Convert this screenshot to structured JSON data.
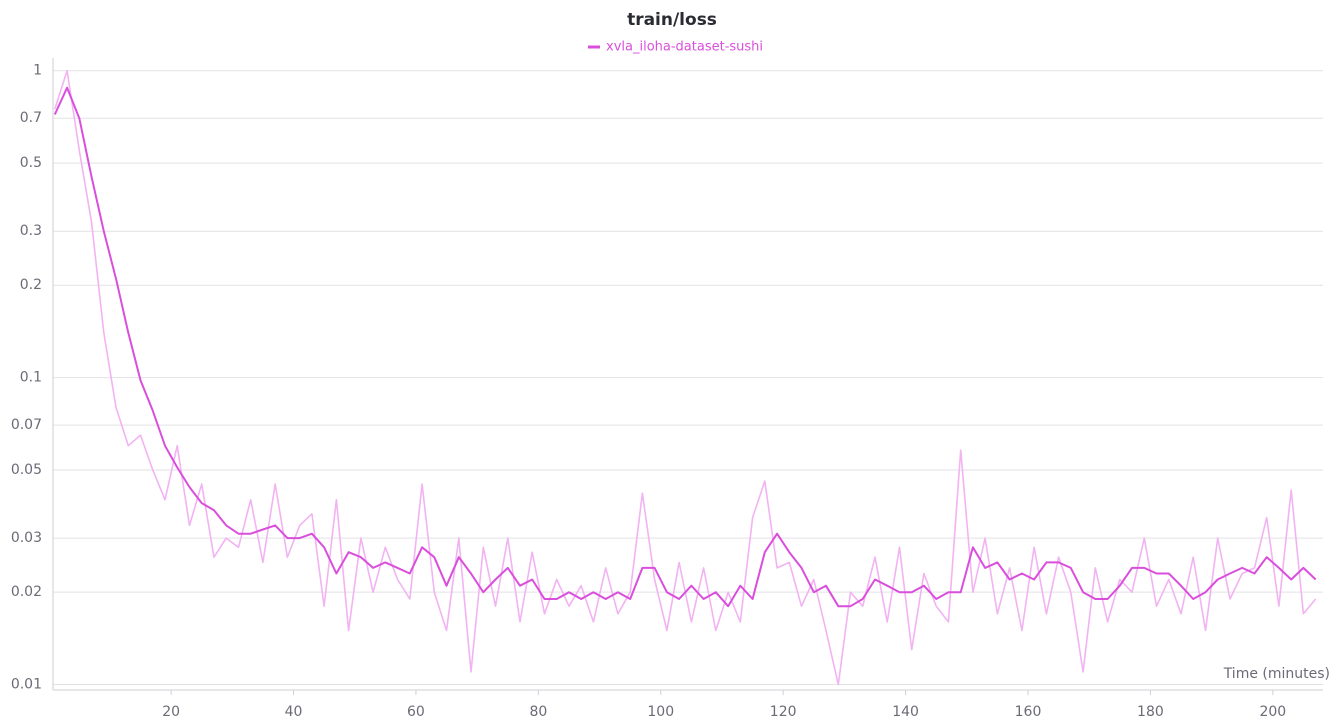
{
  "chart_data": {
    "type": "line",
    "title": "train/loss",
    "x_label": "Time (minutes)",
    "log_y": true,
    "grid": true,
    "xlim": [
      0.7,
      208.2
    ],
    "xticks": [
      20,
      40,
      60,
      80,
      100,
      120,
      140,
      160,
      180,
      200
    ],
    "ylim": [
      0.0096,
      1.1
    ],
    "yticks": [
      0.01,
      0.02,
      0.03,
      0.05,
      0.07,
      0.1,
      0.2,
      0.3,
      0.5,
      0.7,
      1
    ],
    "x": [
      1,
      3,
      5,
      7,
      9,
      11,
      13,
      15,
      17,
      19,
      21,
      23,
      25,
      27,
      29,
      31,
      33,
      35,
      37,
      39,
      41,
      43,
      45,
      47,
      49,
      51,
      53,
      55,
      57,
      59,
      61,
      63,
      65,
      67,
      69,
      71,
      73,
      75,
      77,
      79,
      81,
      83,
      85,
      87,
      89,
      91,
      93,
      95,
      97,
      99,
      101,
      103,
      105,
      107,
      109,
      111,
      113,
      115,
      117,
      119,
      121,
      123,
      125,
      127,
      129,
      131,
      133,
      135,
      137,
      139,
      141,
      143,
      145,
      147,
      149,
      151,
      153,
      155,
      157,
      159,
      161,
      163,
      165,
      167,
      169,
      171,
      173,
      175,
      177,
      179,
      181,
      183,
      185,
      187,
      189,
      191,
      193,
      195,
      197,
      199,
      201,
      203,
      205,
      207
    ],
    "series": [
      {
        "name": "xvla_iloha-dataset-sushi",
        "color": "#d94fdc",
        "values": [
          0.72,
          0.88,
          0.7,
          0.45,
          0.3,
          0.21,
          0.14,
          0.098,
          0.078,
          0.06,
          0.051,
          0.044,
          0.039,
          0.037,
          0.033,
          0.031,
          0.031,
          0.032,
          0.033,
          0.03,
          0.03,
          0.031,
          0.028,
          0.023,
          0.027,
          0.026,
          0.024,
          0.025,
          0.024,
          0.023,
          0.028,
          0.026,
          0.021,
          0.026,
          0.023,
          0.02,
          0.022,
          0.024,
          0.021,
          0.022,
          0.019,
          0.019,
          0.02,
          0.019,
          0.02,
          0.019,
          0.02,
          0.019,
          0.024,
          0.024,
          0.02,
          0.019,
          0.021,
          0.019,
          0.02,
          0.018,
          0.021,
          0.019,
          0.027,
          0.031,
          0.027,
          0.024,
          0.02,
          0.021,
          0.018,
          0.018,
          0.019,
          0.022,
          0.021,
          0.02,
          0.02,
          0.021,
          0.019,
          0.02,
          0.02,
          0.028,
          0.024,
          0.025,
          0.022,
          0.023,
          0.022,
          0.025,
          0.025,
          0.024,
          0.02,
          0.019,
          0.019,
          0.021,
          0.024,
          0.024,
          0.023,
          0.023,
          0.021,
          0.019,
          0.02,
          0.022,
          0.023,
          0.024,
          0.023,
          0.026,
          0.024,
          0.022,
          0.024,
          0.022
        ]
      },
      {
        "color": "#f2b3f2",
        "values": [
          0.75,
          1.0,
          0.55,
          0.32,
          0.14,
          0.08,
          0.06,
          0.065,
          0.05,
          0.04,
          0.06,
          0.033,
          0.045,
          0.026,
          0.03,
          0.028,
          0.04,
          0.025,
          0.045,
          0.026,
          0.033,
          0.036,
          0.018,
          0.04,
          0.015,
          0.03,
          0.02,
          0.028,
          0.022,
          0.019,
          0.045,
          0.02,
          0.015,
          0.03,
          0.011,
          0.028,
          0.018,
          0.03,
          0.016,
          0.027,
          0.017,
          0.022,
          0.018,
          0.021,
          0.016,
          0.024,
          0.017,
          0.02,
          0.042,
          0.022,
          0.015,
          0.025,
          0.016,
          0.024,
          0.015,
          0.02,
          0.016,
          0.035,
          0.046,
          0.024,
          0.025,
          0.018,
          0.022,
          0.015,
          0.01,
          0.02,
          0.018,
          0.026,
          0.016,
          0.028,
          0.013,
          0.023,
          0.018,
          0.016,
          0.058,
          0.02,
          0.03,
          0.017,
          0.024,
          0.015,
          0.028,
          0.017,
          0.026,
          0.02,
          0.011,
          0.024,
          0.016,
          0.022,
          0.02,
          0.03,
          0.018,
          0.022,
          0.017,
          0.026,
          0.015,
          0.03,
          0.019,
          0.023,
          0.024,
          0.035,
          0.018,
          0.043,
          0.017,
          0.019
        ]
      }
    ]
  }
}
